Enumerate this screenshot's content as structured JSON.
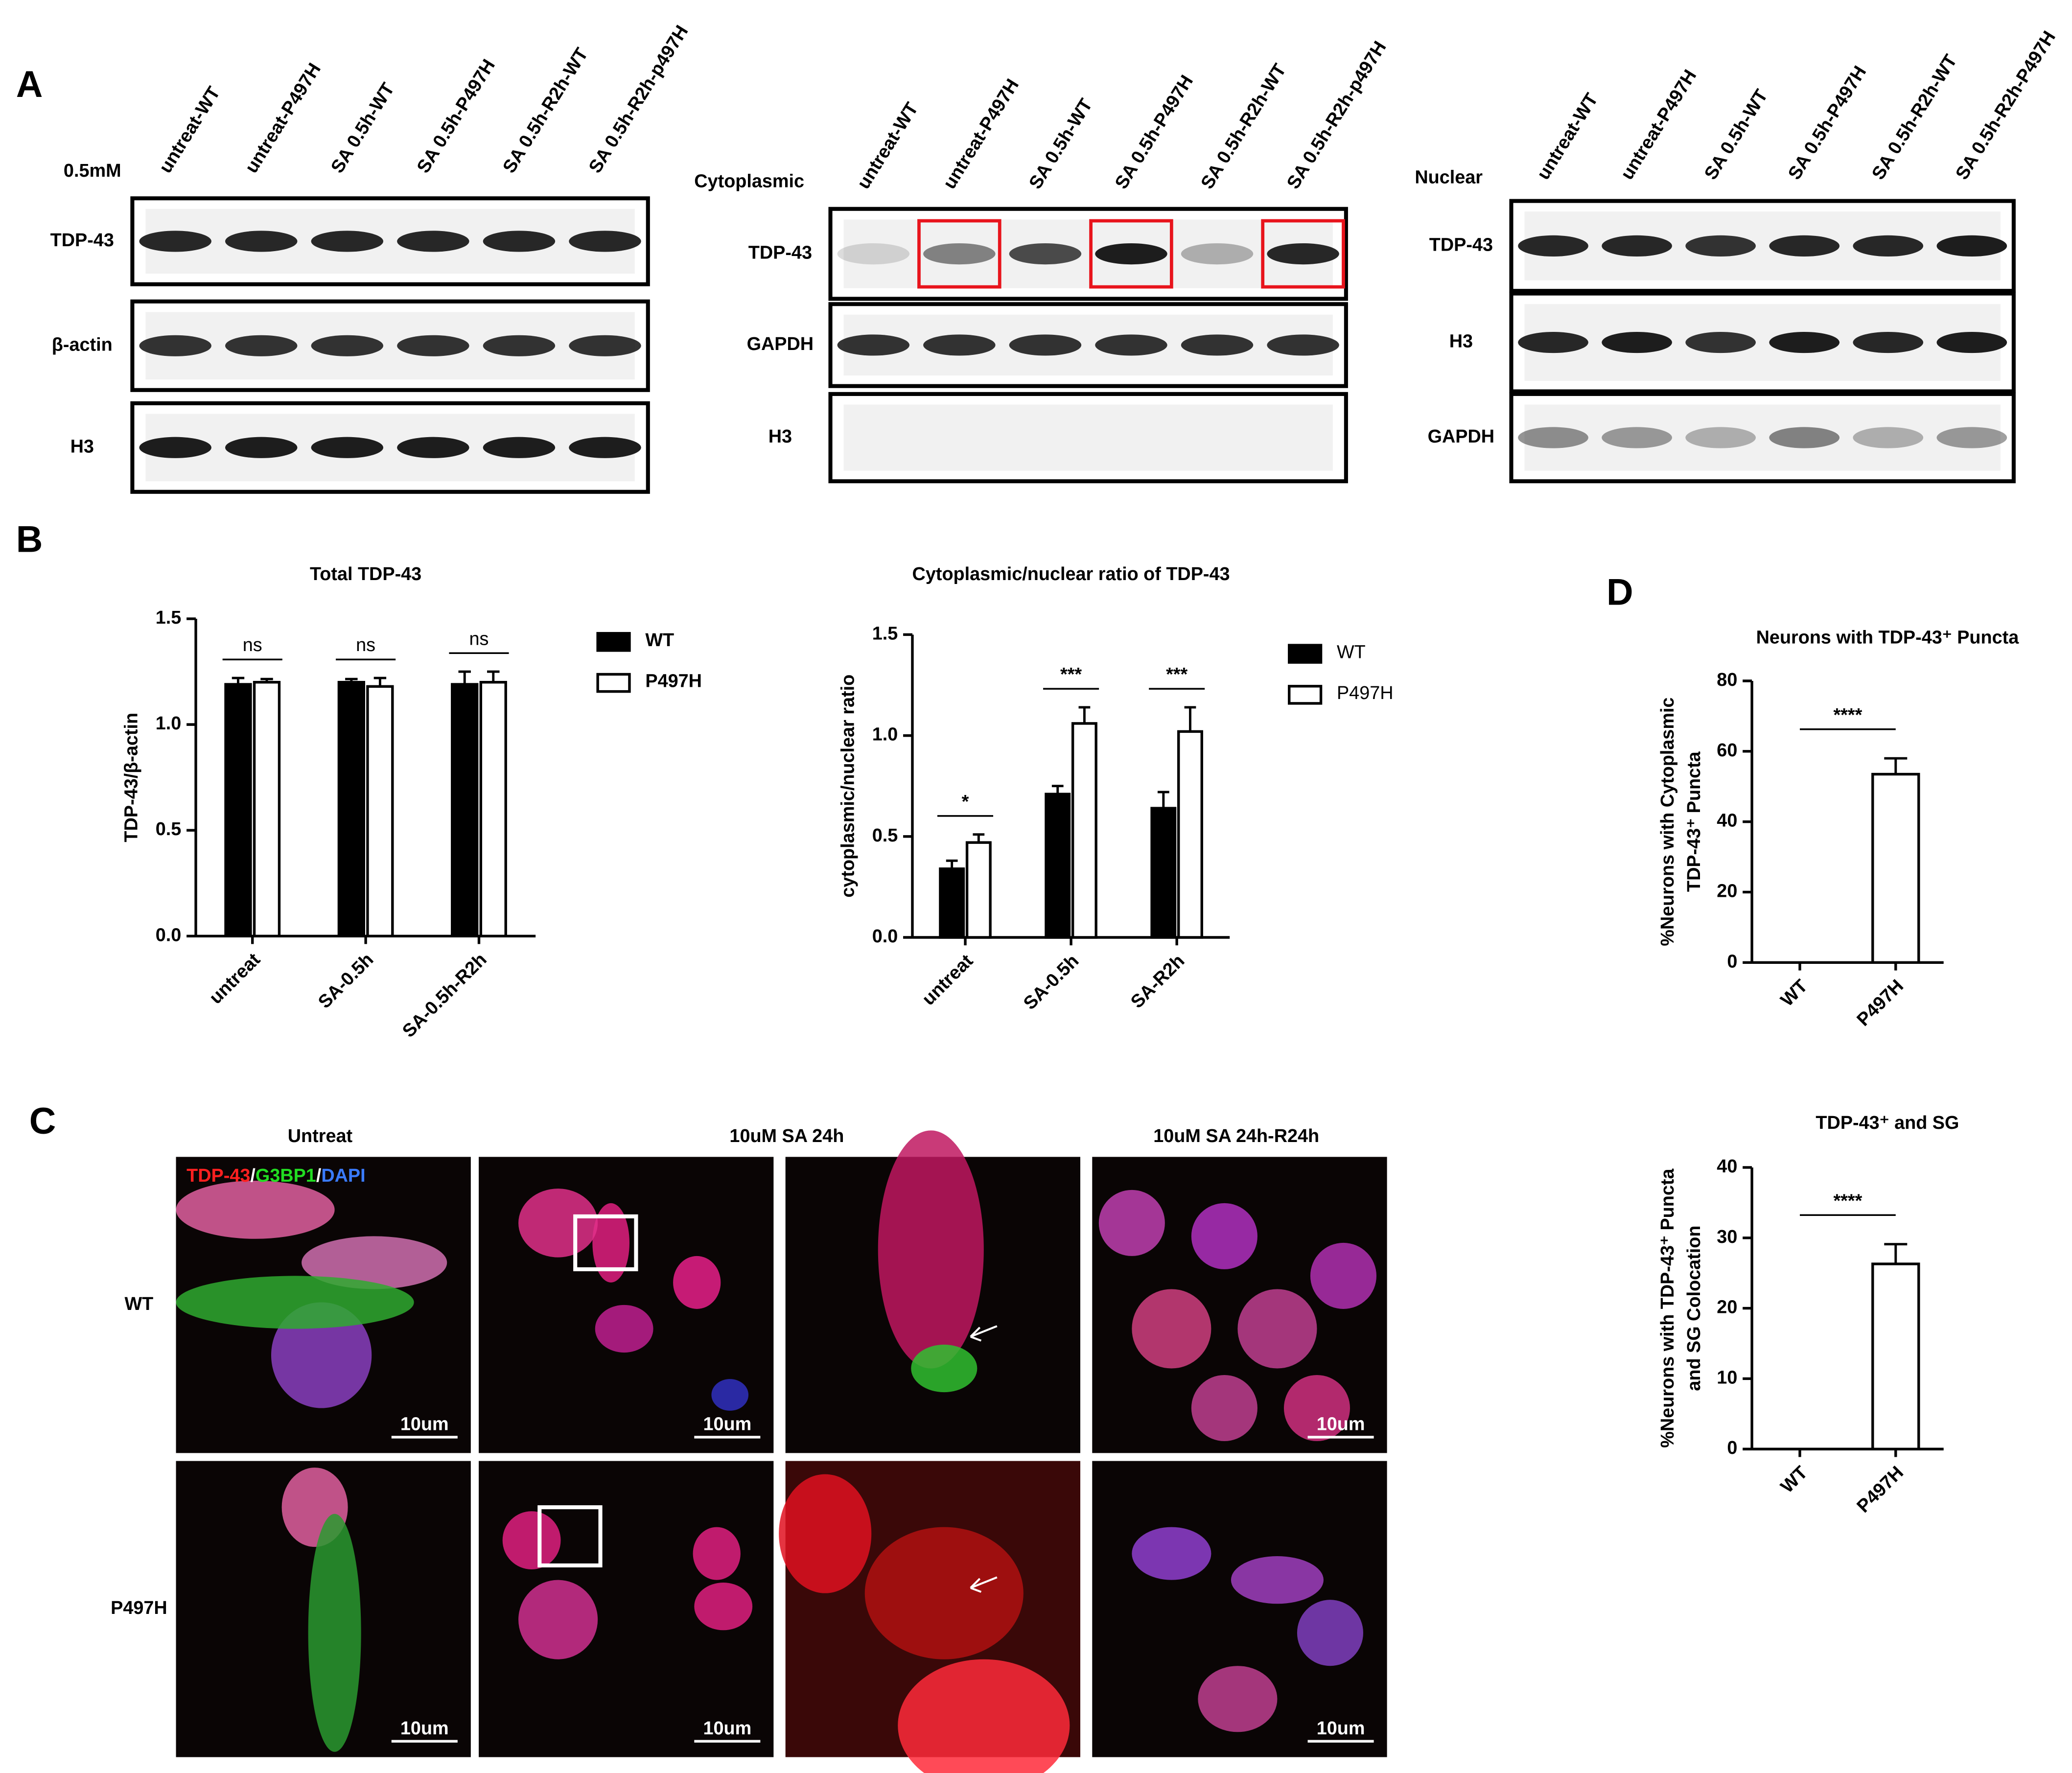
{
  "panel_labels": {
    "a": "A",
    "b": "B",
    "c": "C",
    "d": "D"
  },
  "blots": [
    {
      "header": "0.5mM",
      "lanes": [
        "untreat-WT",
        "untreat-P497H",
        "SA 0.5h-WT",
        "SA 0.5h-P497H",
        "SA 0.5h-R2h-WT",
        "SA 0.5h-R2h-p497H"
      ],
      "rows": [
        "TDP-43",
        "β-actin",
        "H3"
      ]
    },
    {
      "header": "Cytoplasmic",
      "lanes": [
        "untreat-WT",
        "untreat-P497H",
        "SA 0.5h-WT",
        "SA 0.5h-P497H",
        "SA 0.5h-R2h-WT",
        "SA 0.5h-R2h-p497H"
      ],
      "rows": [
        "TDP-43",
        "GAPDH",
        "H3"
      ]
    },
    {
      "header": "Nuclear",
      "lanes": [
        "untreat-WT",
        "untreat-P497H",
        "SA 0.5h-WT",
        "SA 0.5h-P497H",
        "SA 0.5h-R2h-WT",
        "SA 0.5h-R2h-P497H"
      ],
      "rows": [
        "TDP-43",
        "H3",
        "GAPDH"
      ]
    }
  ],
  "chart_data": [
    {
      "type": "bar",
      "title": "Total TDP-43",
      "ylabel": "TDP-43/β-actin",
      "categories": [
        "untreat",
        "SA-0.5h",
        "SA-0.5h-R2h"
      ],
      "series": [
        {
          "name": "WT",
          "color": "#000000",
          "values": [
            1.19,
            1.2,
            1.19
          ],
          "errors": [
            0.03,
            0.015,
            0.06
          ]
        },
        {
          "name": "P497H",
          "color": "#ffffff",
          "values": [
            1.2,
            1.18,
            1.2
          ],
          "errors": [
            0.015,
            0.04,
            0.05
          ]
        }
      ],
      "significance": [
        "ns",
        "ns",
        "ns"
      ],
      "ylim": [
        0,
        1.5
      ],
      "yticks": [
        {
          "value": 0,
          "label": "0.0"
        },
        0.5,
        {
          "value": 1,
          "label": "1.0"
        },
        1.5
      ]
    },
    {
      "type": "bar",
      "title": "Cytoplasmic/nuclear ratio of TDP-43",
      "ylabel": "cytoplasmic/nuclear ratio",
      "categories": [
        "untreat",
        "SA-0.5h",
        "SA-R2h"
      ],
      "series": [
        {
          "name": "WT",
          "color": "#000000",
          "values": [
            0.34,
            0.71,
            0.64
          ],
          "errors": [
            0.04,
            0.04,
            0.08
          ]
        },
        {
          "name": "P497H",
          "color": "#ffffff",
          "values": [
            0.47,
            1.06,
            1.02
          ],
          "errors": [
            0.04,
            0.08,
            0.12
          ]
        }
      ],
      "significance": [
        "*",
        "***",
        "***"
      ],
      "ylim": [
        0,
        1.5
      ],
      "yticks": [
        {
          "value": 0,
          "label": "0.0"
        },
        0.5,
        {
          "value": 1,
          "label": "1.0"
        },
        1.5
      ]
    },
    {
      "type": "bar",
      "title": "Neurons with TDP-43⁺ Puncta",
      "ylabel": [
        "%Neurons with Cytoplasmic",
        "TDP-43⁺ Puncta"
      ],
      "categories": [
        "WT",
        "P497H"
      ],
      "values": [
        0,
        53.5
      ],
      "errors": [
        0,
        4.5
      ],
      "color": "#ffffff",
      "significance": "****",
      "ylim": [
        0,
        80
      ],
      "yticks": [
        0,
        20,
        40,
        60,
        80
      ]
    },
    {
      "type": "bar",
      "title": "TDP-43⁺ and SG",
      "ylabel": [
        "%Neurons with TDP-43⁺ Puncta",
        "and SG Colocation"
      ],
      "categories": [
        "WT",
        "P497H"
      ],
      "values": [
        0,
        26.3
      ],
      "errors": [
        0,
        2.8
      ],
      "color": "#ffffff",
      "significance": "****",
      "ylim": [
        0,
        40
      ],
      "yticks": [
        0,
        10,
        20,
        30,
        40
      ]
    }
  ],
  "microscopy": {
    "columns": [
      "Untreat",
      "10uM SA 24h",
      "10uM SA 24h-R24h"
    ],
    "rows": [
      "WT",
      "P497H"
    ],
    "stain_legend": [
      "TDP-43",
      "/",
      "G3BP1",
      "/",
      "DAPI"
    ],
    "stain_colors": [
      "#ff2020",
      "#ffffff",
      "#22dd22",
      "#ffffff",
      "#3a7bff"
    ],
    "scale_bar": "10um"
  }
}
